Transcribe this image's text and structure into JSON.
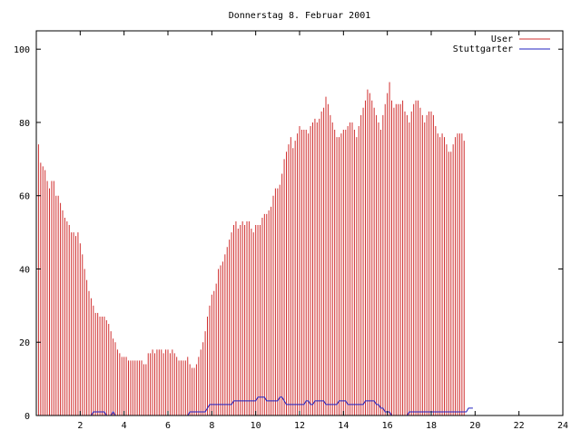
{
  "chart_data": {
    "type": "bar",
    "title": "Donnerstag 8. Februar 2001",
    "xlabel": "",
    "ylabel": "",
    "xlim": [
      0,
      24
    ],
    "ylim": [
      0,
      105
    ],
    "x_ticks": [
      2,
      4,
      6,
      8,
      10,
      12,
      14,
      16,
      18,
      20,
      22,
      24
    ],
    "y_ticks": [
      0,
      20,
      40,
      60,
      80,
      100
    ],
    "grid": false,
    "legend_position": "top-right",
    "colors": {
      "user": "#d03030",
      "stuttgarter": "#2020c0",
      "axis": "#000000"
    },
    "series": [
      {
        "name": "User",
        "style": "impulses",
        "color": "#d03030",
        "x_start": 0,
        "x_step": 0.1,
        "values": [
          73,
          74,
          69,
          68,
          67,
          64,
          62,
          64,
          64,
          60,
          60,
          58,
          56,
          54,
          53,
          52,
          50,
          50,
          49,
          50,
          47,
          44,
          40,
          37,
          34,
          32,
          30,
          28,
          28,
          27,
          27,
          27,
          26,
          25,
          23,
          21,
          20,
          18,
          17,
          16,
          16,
          16,
          15,
          15,
          15,
          15,
          15,
          15,
          15,
          14,
          14,
          17,
          17,
          18,
          17,
          18,
          18,
          18,
          17,
          18,
          18,
          17,
          18,
          17,
          16,
          15,
          15,
          15,
          15,
          16,
          14,
          13,
          13,
          14,
          16,
          18,
          20,
          23,
          27,
          30,
          33,
          34,
          36,
          40,
          41,
          42,
          44,
          46,
          48,
          50,
          52,
          53,
          51,
          52,
          53,
          52,
          53,
          53,
          51,
          50,
          52,
          52,
          52,
          54,
          55,
          55,
          56,
          57,
          60,
          62,
          62,
          63,
          66,
          70,
          72,
          74,
          76,
          73,
          75,
          77,
          79,
          78,
          78,
          78,
          77,
          79,
          80,
          81,
          80,
          81,
          83,
          84,
          87,
          85,
          82,
          80,
          78,
          76,
          76,
          77,
          78,
          78,
          79,
          80,
          80,
          78,
          76,
          79,
          82,
          84,
          86,
          89,
          88,
          86,
          84,
          82,
          80,
          78,
          82,
          85,
          88,
          91,
          86,
          84,
          85,
          85,
          85,
          86,
          83,
          82,
          80,
          83,
          85,
          86,
          86,
          84,
          82,
          80,
          82,
          83,
          83,
          82,
          79,
          77,
          76,
          77,
          76,
          74,
          72,
          72,
          74,
          76,
          77,
          77,
          77,
          75
        ]
      },
      {
        "name": "Stuttgarter",
        "style": "line",
        "color": "#2020c0",
        "x_start": 0,
        "x_step": 0.1,
        "values": [
          0,
          0,
          0,
          0,
          0,
          0,
          0,
          0,
          0,
          0,
          0,
          0,
          0,
          0,
          0,
          0,
          0,
          0,
          0,
          0,
          0,
          0,
          0,
          0,
          0,
          0,
          1,
          1,
          1,
          1,
          1,
          1,
          0,
          0,
          0,
          1,
          0,
          0,
          0,
          0,
          0,
          0,
          0,
          0,
          0,
          0,
          0,
          0,
          0,
          0,
          0,
          0,
          0,
          0,
          0,
          0,
          0,
          0,
          0,
          0,
          0,
          0,
          0,
          0,
          0,
          0,
          0,
          0,
          0,
          0,
          1,
          1,
          1,
          1,
          1,
          1,
          1,
          1,
          2,
          3,
          3,
          3,
          3,
          3,
          3,
          3,
          3,
          3,
          3,
          3,
          4,
          4,
          4,
          4,
          4,
          4,
          4,
          4,
          4,
          4,
          4,
          5,
          5,
          5,
          5,
          4,
          4,
          4,
          4,
          4,
          4,
          5,
          5,
          4,
          3,
          3,
          3,
          3,
          3,
          3,
          3,
          3,
          3,
          4,
          4,
          3,
          3,
          4,
          4,
          4,
          4,
          4,
          3,
          3,
          3,
          3,
          3,
          3,
          4,
          4,
          4,
          4,
          3,
          3,
          3,
          3,
          3,
          3,
          3,
          3,
          4,
          4,
          4,
          4,
          4,
          3,
          3,
          2,
          2,
          1,
          1,
          1,
          0,
          0,
          0,
          0,
          0,
          0,
          0,
          0,
          1,
          1,
          1,
          1,
          1,
          1,
          1,
          1,
          1,
          1,
          1,
          1,
          1,
          1,
          1,
          1,
          1,
          1,
          1,
          1,
          1,
          1,
          1,
          1,
          1,
          1,
          1,
          2,
          2,
          2
        ]
      }
    ]
  }
}
